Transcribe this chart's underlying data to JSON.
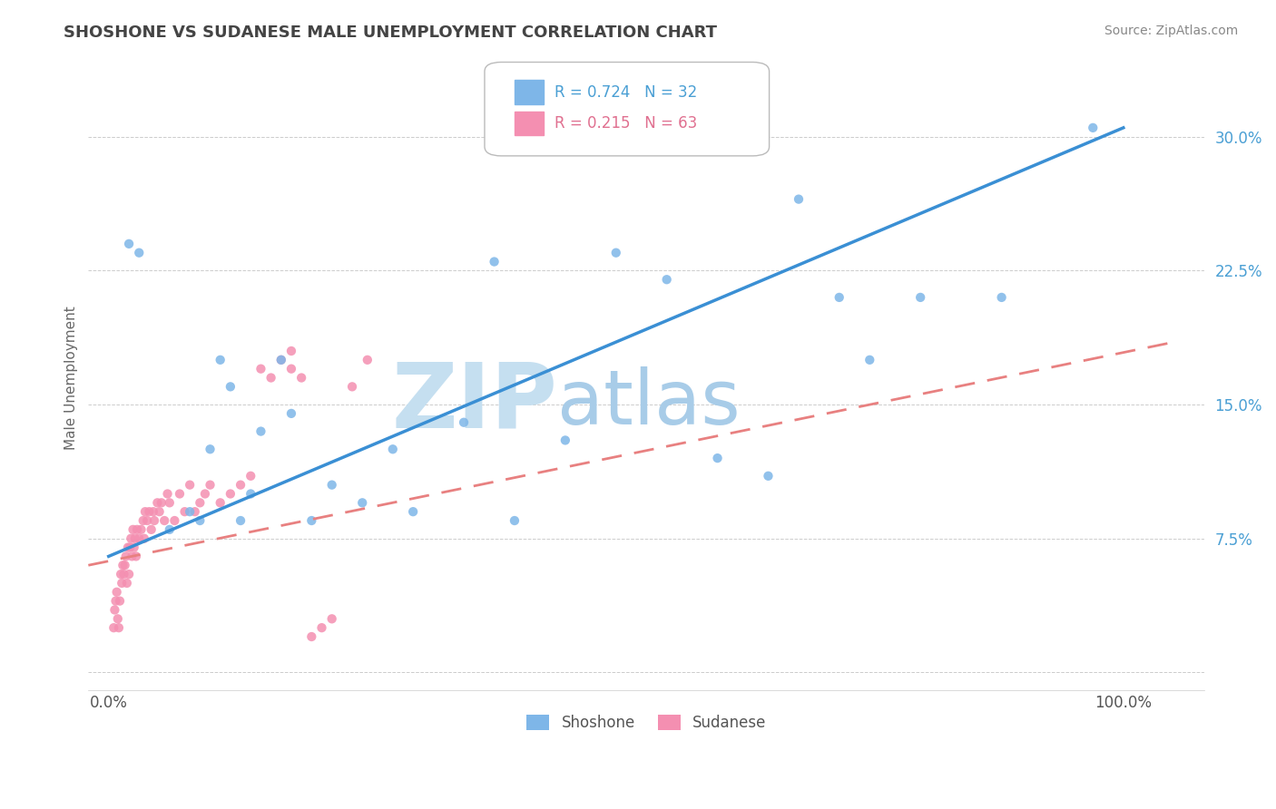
{
  "title": "SHOSHONE VS SUDANESE MALE UNEMPLOYMENT CORRELATION CHART",
  "source": "Source: ZipAtlas.com",
  "ylabel": "Male Unemployment",
  "yticks": [
    0.0,
    0.075,
    0.15,
    0.225,
    0.3
  ],
  "ytick_labels": [
    "",
    "7.5%",
    "15.0%",
    "22.5%",
    "30.0%"
  ],
  "xlim": [
    -0.02,
    1.08
  ],
  "ylim": [
    -0.01,
    0.34
  ],
  "shoshone_color": "#7eb6e8",
  "sudanese_color": "#f48fb1",
  "trend_shoshone_color": "#3a8fd4",
  "trend_sudanese_color": "#e88080",
  "watermark_zip": "ZIP",
  "watermark_atlas": "atlas",
  "watermark_color_zip": "#c5dff0",
  "watermark_color_atlas": "#a8cce8",
  "legend_r1": "R = 0.724",
  "legend_n1": "N = 32",
  "legend_r2": "R = 0.215",
  "legend_n2": "N = 63",
  "shoshone_points_x": [
    0.02,
    0.03,
    0.06,
    0.08,
    0.09,
    0.1,
    0.11,
    0.12,
    0.13,
    0.14,
    0.15,
    0.17,
    0.18,
    0.2,
    0.22,
    0.25,
    0.28,
    0.3,
    0.35,
    0.38,
    0.4,
    0.45,
    0.5,
    0.55,
    0.6,
    0.65,
    0.68,
    0.72,
    0.75,
    0.8,
    0.88,
    0.97
  ],
  "shoshone_points_y": [
    0.24,
    0.235,
    0.08,
    0.09,
    0.085,
    0.125,
    0.175,
    0.16,
    0.085,
    0.1,
    0.135,
    0.175,
    0.145,
    0.085,
    0.105,
    0.095,
    0.125,
    0.09,
    0.14,
    0.23,
    0.085,
    0.13,
    0.235,
    0.22,
    0.12,
    0.11,
    0.265,
    0.21,
    0.175,
    0.21,
    0.21,
    0.305
  ],
  "sudanese_points_x": [
    0.005,
    0.006,
    0.007,
    0.008,
    0.009,
    0.01,
    0.011,
    0.012,
    0.013,
    0.014,
    0.015,
    0.016,
    0.017,
    0.018,
    0.019,
    0.02,
    0.021,
    0.022,
    0.023,
    0.024,
    0.025,
    0.026,
    0.027,
    0.028,
    0.03,
    0.032,
    0.034,
    0.035,
    0.036,
    0.038,
    0.04,
    0.042,
    0.044,
    0.045,
    0.048,
    0.05,
    0.052,
    0.055,
    0.058,
    0.06,
    0.065,
    0.07,
    0.075,
    0.08,
    0.085,
    0.09,
    0.095,
    0.1,
    0.11,
    0.12,
    0.13,
    0.14,
    0.15,
    0.16,
    0.17,
    0.18,
    0.19,
    0.2,
    0.21,
    0.22,
    0.24,
    0.255,
    0.18
  ],
  "sudanese_points_y": [
    0.025,
    0.035,
    0.04,
    0.045,
    0.03,
    0.025,
    0.04,
    0.055,
    0.05,
    0.06,
    0.055,
    0.06,
    0.065,
    0.05,
    0.07,
    0.055,
    0.07,
    0.075,
    0.065,
    0.08,
    0.07,
    0.075,
    0.065,
    0.08,
    0.075,
    0.08,
    0.085,
    0.075,
    0.09,
    0.085,
    0.09,
    0.08,
    0.09,
    0.085,
    0.095,
    0.09,
    0.095,
    0.085,
    0.1,
    0.095,
    0.085,
    0.1,
    0.09,
    0.105,
    0.09,
    0.095,
    0.1,
    0.105,
    0.095,
    0.1,
    0.105,
    0.11,
    0.17,
    0.165,
    0.175,
    0.18,
    0.165,
    0.02,
    0.025,
    0.03,
    0.16,
    0.175,
    0.17
  ],
  "shoshone_trend_x0": 0.0,
  "shoshone_trend_y0": 0.065,
  "shoshone_trend_x1": 1.0,
  "shoshone_trend_y1": 0.305,
  "sudanese_trend_x0": -0.02,
  "sudanese_trend_y0": 0.06,
  "sudanese_trend_x1": 1.05,
  "sudanese_trend_y1": 0.185
}
